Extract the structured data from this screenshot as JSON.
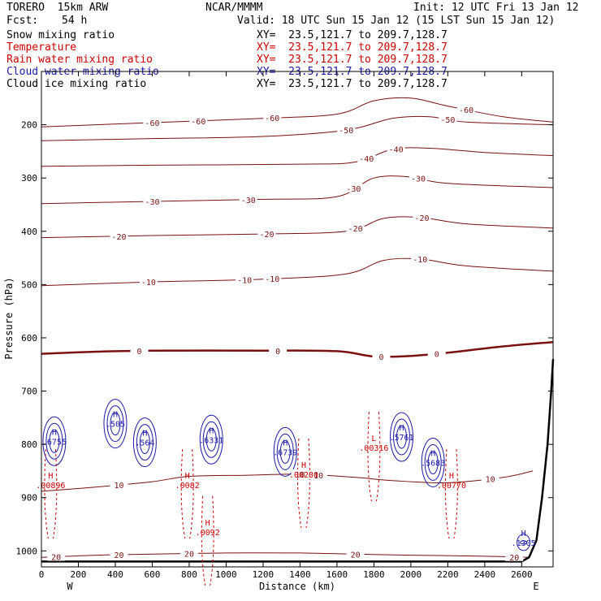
{
  "header": {
    "model": "TORERO  15km ARW",
    "center": "NCAR/MMMM",
    "init": "Init: 12 UTC Fri 13 Jan 12",
    "fcst_label": "Fcst:",
    "fcst_value": "54 h",
    "valid": "Valid: 18 UTC Sun 15 Jan 12 (15 LST Sun 15 Jan 12)"
  },
  "legend": [
    {
      "name": "Snow mixing ratio",
      "xy": "XY=  23.5,121.7 to 209.7,128.7",
      "color": "#000000"
    },
    {
      "name": "Temperature",
      "xy": "XY=  23.5,121.7 to 209.7,128.7",
      "color": "#cc0000"
    },
    {
      "name": "Rain water mixing ratio",
      "xy": "XY=  23.5,121.7 to 209.7,128.7",
      "color": "#cc0000"
    },
    {
      "name": "Cloud water mixing ratio",
      "xy": "XY=  23.5,121.7 to 209.7,128.7",
      "color": "#1a1aa8"
    },
    {
      "name": "Cloud ice mixing ratio",
      "xy": "XY=  23.5,121.7 to 209.7,128.7",
      "color": "#000000"
    }
  ],
  "chart_data": {
    "type": "contour-cross-section",
    "xlabel": "Distance (km)",
    "ylabel": "Pressure (hPa)",
    "xlim": [
      0,
      2770
    ],
    "ylim": [
      1030,
      100
    ],
    "x_ticks": [
      0,
      200,
      400,
      600,
      800,
      1000,
      1200,
      1400,
      1600,
      1800,
      2000,
      2200,
      2400,
      2600
    ],
    "y_ticks": [
      200,
      300,
      400,
      500,
      600,
      700,
      800,
      900,
      1000
    ],
    "x_end_labels": {
      "left": "W",
      "right": "E"
    },
    "temperature_contours": [
      {
        "level": -60,
        "points": [
          [
            0,
            204
          ],
          [
            600,
            196
          ],
          [
            1200,
            188
          ],
          [
            1600,
            180
          ],
          [
            1800,
            155
          ],
          [
            2000,
            150
          ],
          [
            2200,
            165
          ],
          [
            2500,
            185
          ],
          [
            2770,
            195
          ]
        ],
        "labels": [
          [
            600,
            -60
          ],
          [
            850,
            -60
          ],
          [
            1250,
            -60
          ],
          [
            2300,
            -60
          ]
        ]
      },
      {
        "level": -50,
        "points": [
          [
            0,
            230
          ],
          [
            600,
            226
          ],
          [
            1200,
            222
          ],
          [
            1650,
            210
          ],
          [
            1900,
            188
          ],
          [
            2100,
            185
          ],
          [
            2300,
            195
          ],
          [
            2770,
            200
          ]
        ],
        "labels": [
          [
            1650,
            -50
          ],
          [
            2200,
            -50
          ]
        ]
      },
      {
        "level": -40,
        "points": [
          [
            0,
            278
          ],
          [
            600,
            276
          ],
          [
            1400,
            274
          ],
          [
            1700,
            270
          ],
          [
            1900,
            246
          ],
          [
            2100,
            244
          ],
          [
            2400,
            252
          ],
          [
            2770,
            258
          ]
        ],
        "labels": [
          [
            1760,
            -40
          ],
          [
            1920,
            -40
          ]
        ]
      },
      {
        "level": -30,
        "points": [
          [
            0,
            348
          ],
          [
            600,
            344
          ],
          [
            1200,
            340
          ],
          [
            1600,
            335
          ],
          [
            1800,
            300
          ],
          [
            2000,
            298
          ],
          [
            2200,
            310
          ],
          [
            2770,
            318
          ]
        ],
        "labels": [
          [
            600,
            -30
          ],
          [
            1120,
            -30
          ],
          [
            1690,
            -30
          ],
          [
            2040,
            -30
          ]
        ]
      },
      {
        "level": -20,
        "points": [
          [
            0,
            412
          ],
          [
            600,
            408
          ],
          [
            1200,
            405
          ],
          [
            1650,
            400
          ],
          [
            1850,
            376
          ],
          [
            2050,
            374
          ],
          [
            2300,
            386
          ],
          [
            2770,
            394
          ]
        ],
        "labels": [
          [
            420,
            -20
          ],
          [
            1220,
            -20
          ],
          [
            1700,
            -20
          ],
          [
            2060,
            -20
          ]
        ]
      },
      {
        "level": -10,
        "points": [
          [
            0,
            502
          ],
          [
            600,
            495
          ],
          [
            1200,
            490
          ],
          [
            1650,
            480
          ],
          [
            1850,
            455
          ],
          [
            2050,
            452
          ],
          [
            2300,
            465
          ],
          [
            2770,
            475
          ]
        ],
        "labels": [
          [
            580,
            -10
          ],
          [
            1100,
            -10
          ],
          [
            1250,
            -10
          ],
          [
            2050,
            -10
          ]
        ]
      },
      {
        "level": 0,
        "points": [
          [
            0,
            630
          ],
          [
            300,
            626
          ],
          [
            600,
            624
          ],
          [
            1200,
            624
          ],
          [
            1600,
            625
          ],
          [
            1800,
            635
          ],
          [
            2000,
            634
          ],
          [
            2200,
            628
          ],
          [
            2500,
            616
          ],
          [
            2770,
            608
          ]
        ],
        "labels": [
          [
            530,
            0
          ],
          [
            1280,
            0
          ],
          [
            1840,
            0
          ],
          [
            2140,
            0
          ]
        ]
      },
      {
        "level": 10,
        "points": [
          [
            0,
            888
          ],
          [
            300,
            880
          ],
          [
            600,
            870
          ],
          [
            800,
            860
          ],
          [
            1100,
            858
          ],
          [
            1400,
            856
          ],
          [
            1700,
            862
          ],
          [
            1900,
            868
          ],
          [
            2200,
            872
          ],
          [
            2500,
            862
          ],
          [
            2660,
            850
          ]
        ],
        "labels": [
          [
            420,
            10
          ],
          [
            1400,
            10
          ],
          [
            1500,
            10
          ],
          [
            2430,
            10
          ]
        ]
      },
      {
        "level": 20,
        "points": [
          [
            0,
            1012
          ],
          [
            300,
            1008
          ],
          [
            600,
            1006
          ],
          [
            1000,
            1004
          ],
          [
            1400,
            1004
          ],
          [
            1700,
            1006
          ],
          [
            2000,
            1008
          ],
          [
            2400,
            1010
          ],
          [
            2640,
            1012
          ]
        ],
        "labels": [
          [
            80,
            20
          ],
          [
            420,
            20
          ],
          [
            800,
            20
          ],
          [
            1700,
            20
          ],
          [
            2560,
            20
          ]
        ]
      }
    ],
    "cloud_extrema": [
      {
        "x": 70,
        "p": 788,
        "label": "H",
        "value": ".6755"
      },
      {
        "x": 400,
        "p": 755,
        "label": "H",
        "value": ".505"
      },
      {
        "x": 560,
        "p": 790,
        "label": "H",
        "value": ".564"
      },
      {
        "x": 920,
        "p": 785,
        "label": "H",
        "value": ".6331"
      },
      {
        "x": 1320,
        "p": 808,
        "label": "H",
        "value": ".6739"
      },
      {
        "x": 1950,
        "p": 780,
        "label": "H",
        "value": ".5761"
      },
      {
        "x": 2120,
        "p": 828,
        "label": "H",
        "value": ".5683"
      },
      {
        "x": 2610,
        "p": 978,
        "label": "H",
        "value": ".1305"
      }
    ],
    "rain_extrema": [
      {
        "x": 50,
        "p": 870,
        "label": "H",
        "value": ".00896"
      },
      {
        "x": 790,
        "p": 870,
        "label": "H",
        "value": ".0082"
      },
      {
        "x": 900,
        "p": 958,
        "label": "H",
        "value": ".0092"
      },
      {
        "x": 1420,
        "p": 850,
        "label": "H",
        "value": ".00280"
      },
      {
        "x": 1800,
        "p": 800,
        "label": "L",
        "value": ".00316"
      },
      {
        "x": 2220,
        "p": 870,
        "label": "H",
        "value": ".00770"
      }
    ],
    "terrain": {
      "points": [
        [
          0,
          1020
        ],
        [
          2600,
          1020
        ],
        [
          2640,
          1012
        ],
        [
          2680,
          980
        ],
        [
          2710,
          900
        ],
        [
          2740,
          800
        ],
        [
          2760,
          700
        ],
        [
          2770,
          640
        ]
      ]
    }
  }
}
